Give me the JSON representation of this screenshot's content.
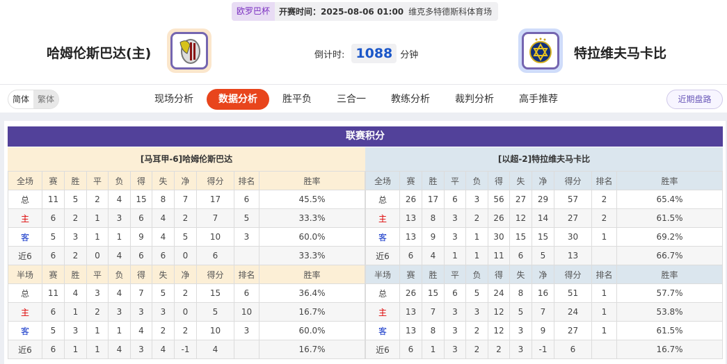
{
  "header": {
    "competition": "欧罗巴杯",
    "kickoff": "开赛时间：2025-08-06 01:00",
    "venue": "维克多特德斯科体育场",
    "home_team": "哈姆伦斯巴达(主)",
    "away_team": "特拉维夫马卡比",
    "countdown_label": "倒计时:",
    "countdown_value": "1088",
    "countdown_unit": "分钟"
  },
  "lang": {
    "simplified": "简体",
    "traditional": "繁体"
  },
  "nav": {
    "items": [
      "现场分析",
      "数据分析",
      "胜平负",
      "三合一",
      "教练分析",
      "裁判分析",
      "高手推荐"
    ],
    "active": 1,
    "recent": "近期盘路"
  },
  "colors": {
    "title_bg": "#52419a",
    "active_tab": "#e8451c",
    "home_header": "#fcefd6",
    "away_header": "#dbe6ee"
  },
  "standings": {
    "title": "联赛积分",
    "columns_full": [
      "全场",
      "赛",
      "胜",
      "平",
      "负",
      "得",
      "失",
      "净",
      "得分",
      "排名",
      "胜率"
    ],
    "columns_half": [
      "半场",
      "赛",
      "胜",
      "平",
      "负",
      "得",
      "失",
      "净",
      "得分",
      "排名",
      "胜率"
    ],
    "home": {
      "label": "[马耳甲-6]哈姆伦斯巴达",
      "full": [
        [
          "总",
          "11",
          "5",
          "2",
          "4",
          "15",
          "8",
          "7",
          "17",
          "6",
          "45.5%"
        ],
        [
          "主",
          "6",
          "2",
          "1",
          "3",
          "6",
          "4",
          "2",
          "7",
          "5",
          "33.3%"
        ],
        [
          "客",
          "5",
          "3",
          "1",
          "1",
          "9",
          "4",
          "5",
          "10",
          "3",
          "60.0%"
        ],
        [
          "近6",
          "6",
          "2",
          "0",
          "4",
          "6",
          "6",
          "0",
          "6",
          "",
          "33.3%"
        ]
      ],
      "half": [
        [
          "总",
          "11",
          "4",
          "3",
          "4",
          "7",
          "5",
          "2",
          "15",
          "6",
          "36.4%"
        ],
        [
          "主",
          "6",
          "1",
          "2",
          "3",
          "3",
          "3",
          "0",
          "5",
          "10",
          "16.7%"
        ],
        [
          "客",
          "5",
          "3",
          "1",
          "1",
          "4",
          "2",
          "2",
          "10",
          "3",
          "60.0%"
        ],
        [
          "近6",
          "6",
          "1",
          "1",
          "4",
          "3",
          "4",
          "-1",
          "4",
          "",
          "16.7%"
        ]
      ]
    },
    "away": {
      "label": "[以超-2]特拉维夫马卡比",
      "full": [
        [
          "总",
          "26",
          "17",
          "6",
          "3",
          "56",
          "27",
          "29",
          "57",
          "2",
          "65.4%"
        ],
        [
          "主",
          "13",
          "8",
          "3",
          "2",
          "26",
          "12",
          "14",
          "27",
          "2",
          "61.5%"
        ],
        [
          "客",
          "13",
          "9",
          "3",
          "1",
          "30",
          "15",
          "15",
          "30",
          "1",
          "69.2%"
        ],
        [
          "近6",
          "6",
          "4",
          "1",
          "1",
          "11",
          "6",
          "5",
          "13",
          "",
          "66.7%"
        ]
      ],
      "half": [
        [
          "总",
          "26",
          "15",
          "6",
          "5",
          "24",
          "8",
          "16",
          "51",
          "1",
          "57.7%"
        ],
        [
          "主",
          "13",
          "7",
          "3",
          "3",
          "12",
          "5",
          "7",
          "24",
          "1",
          "53.8%"
        ],
        [
          "客",
          "13",
          "8",
          "3",
          "2",
          "12",
          "3",
          "9",
          "27",
          "1",
          "61.5%"
        ],
        [
          "近6",
          "6",
          "1",
          "3",
          "2",
          "2",
          "3",
          "-1",
          "6",
          "",
          "16.7%"
        ]
      ]
    }
  }
}
